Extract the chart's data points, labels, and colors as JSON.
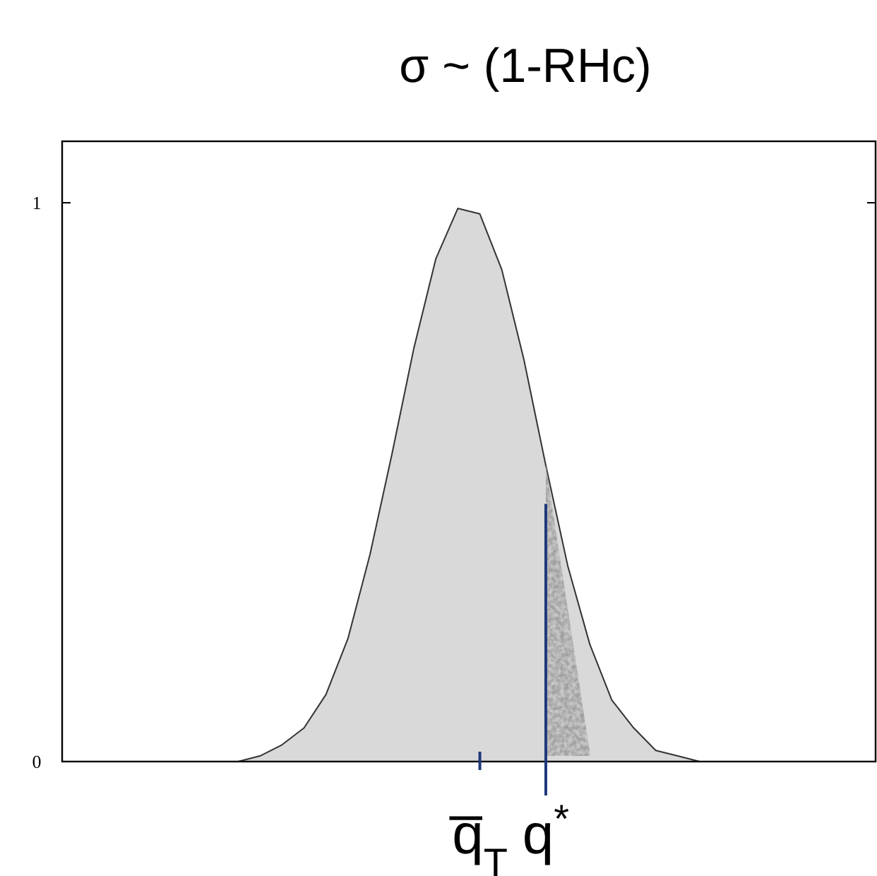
{
  "chart_data": {
    "type": "area",
    "title": "σ ~ (1-RHc)",
    "categories": [
      null,
      null,
      null,
      null,
      null,
      null,
      null,
      null,
      null,
      null,
      null,
      null,
      null,
      null,
      null,
      null,
      null,
      null,
      null,
      "q̅$_{T}$",
      null,
      null,
      "q$^{*}$",
      null,
      null,
      null,
      null,
      null,
      null,
      null,
      null,
      null,
      null,
      null,
      null,
      null,
      null,
      null
    ],
    "series": [
      {
        "color": "#d9d9d9",
        "values": [
          0,
          0,
          0,
          0,
          0,
          0,
          0,
          0,
          0,
          0.01,
          0.03,
          0.06,
          0.12,
          0.22,
          0.37,
          0.55,
          0.74,
          0.9,
          0.99,
          0.98,
          0.88,
          0.72,
          0.53,
          0.35,
          0.21,
          0.11,
          0.06,
          0.02,
          0.01,
          0,
          0,
          0,
          0,
          0,
          0,
          0,
          0,
          0
        ]
      }
    ],
    "ylim": [
      0,
      1.11
    ],
    "yticks": [
      0,
      1
    ],
    "ref_lines": [
      {
        "axis": "x",
        "value": "q$^{*}$",
        "color": "#1f3a7a"
      }
    ]
  }
}
